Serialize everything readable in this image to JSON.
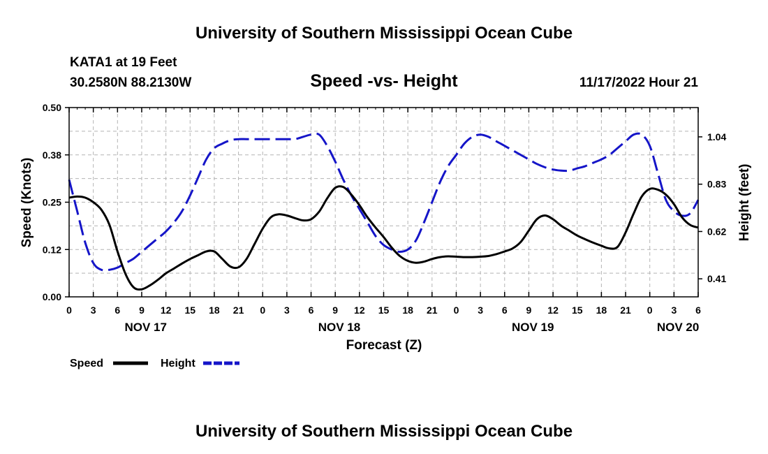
{
  "header": {
    "title": "University of Southern Mississippi Ocean Cube",
    "footer_title": "University of Southern Mississippi Ocean Cube",
    "station": "KATA1 at 19 Feet",
    "coords": "30.2580N  88.2130W",
    "datetime": "11/17/2022 Hour 21"
  },
  "colors": {
    "speed": "#000000",
    "height": "#1515c8",
    "grid": "#b4b4b4"
  },
  "chart_data": {
    "type": "line",
    "title": "Speed -vs- Height",
    "xlabel": "Forecast (Z)",
    "ylabel": "Speed (Knots)",
    "y2label": "Height (feet)",
    "xlim": [
      0,
      78
    ],
    "ylim": [
      0,
      0.5
    ],
    "y2lim": [
      0.33,
      1.17
    ],
    "x_ticks": [
      0,
      3,
      6,
      9,
      12,
      15,
      18,
      21,
      24,
      27,
      30,
      33,
      36,
      39,
      42,
      45,
      48,
      51,
      54,
      57,
      60,
      63,
      66,
      69,
      72,
      75,
      78
    ],
    "x_tick_labels": [
      "0",
      "3",
      "6",
      "9",
      "12",
      "15",
      "18",
      "21",
      "0",
      "3",
      "6",
      "9",
      "12",
      "15",
      "18",
      "21",
      "0",
      "3",
      "6",
      "9",
      "12",
      "15",
      "18",
      "21",
      "0",
      "3",
      "6"
    ],
    "day_labels": [
      {
        "x": 9.5,
        "label": "NOV 17"
      },
      {
        "x": 33.5,
        "label": "NOV 18"
      },
      {
        "x": 57.5,
        "label": "NOV 19"
      },
      {
        "x": 75.5,
        "label": "NOV 20"
      }
    ],
    "y_ticks": [
      0,
      0.125,
      0.25,
      0.375,
      0.5
    ],
    "y_tick_labels": [
      "0.00",
      "0.12",
      "0.25",
      "0.38",
      "0.50"
    ],
    "y2_ticks": [
      0.41,
      0.62,
      0.83,
      1.04
    ],
    "y2_tick_labels": [
      "0.41",
      "0.62",
      "0.83",
      "1.04"
    ],
    "grid": true,
    "legend": "bottom-left",
    "series": [
      {
        "name": "Speed",
        "axis": "left",
        "style": "solid",
        "x": [
          0,
          1,
          2,
          3,
          4,
          5,
          6,
          7,
          8,
          9,
          10,
          11,
          12,
          13,
          14,
          15,
          16,
          17,
          18,
          19,
          20,
          21,
          22,
          23,
          24,
          25,
          26,
          27,
          28,
          29,
          30,
          31,
          32,
          33,
          34,
          35,
          36,
          37,
          38,
          39,
          40,
          41,
          42,
          43,
          44,
          45,
          46,
          47,
          48,
          49,
          50,
          51,
          52,
          53,
          54,
          55,
          56,
          57,
          58,
          59,
          60,
          61,
          62,
          63,
          64,
          65,
          66,
          67,
          68,
          69,
          70,
          71,
          72,
          73,
          74,
          75,
          76,
          77,
          78
        ],
        "values": [
          0.262,
          0.265,
          0.262,
          0.25,
          0.23,
          0.19,
          0.12,
          0.06,
          0.025,
          0.02,
          0.03,
          0.045,
          0.062,
          0.075,
          0.088,
          0.1,
          0.11,
          0.12,
          0.12,
          0.1,
          0.08,
          0.078,
          0.1,
          0.14,
          0.18,
          0.21,
          0.218,
          0.215,
          0.208,
          0.202,
          0.205,
          0.225,
          0.26,
          0.288,
          0.29,
          0.27,
          0.242,
          0.21,
          0.183,
          0.158,
          0.13,
          0.108,
          0.095,
          0.09,
          0.093,
          0.1,
          0.105,
          0.107,
          0.106,
          0.105,
          0.105,
          0.106,
          0.108,
          0.113,
          0.12,
          0.128,
          0.145,
          0.175,
          0.205,
          0.215,
          0.205,
          0.188,
          0.175,
          0.162,
          0.152,
          0.143,
          0.135,
          0.128,
          0.132,
          0.17,
          0.22,
          0.265,
          0.285,
          0.283,
          0.27,
          0.245,
          0.21,
          0.19,
          0.183
        ]
      },
      {
        "name": "Height",
        "axis": "right",
        "style": "dashed",
        "x": [
          0,
          1,
          2,
          3,
          4,
          5,
          6,
          7,
          8,
          9,
          10,
          11,
          12,
          13,
          14,
          15,
          16,
          17,
          18,
          19,
          20,
          21,
          22,
          23,
          24,
          25,
          26,
          27,
          28,
          29,
          30,
          31,
          32,
          33,
          34,
          35,
          36,
          37,
          38,
          39,
          40,
          41,
          42,
          43,
          44,
          45,
          46,
          47,
          48,
          49,
          50,
          51,
          52,
          53,
          54,
          55,
          56,
          57,
          58,
          59,
          60,
          61,
          62,
          63,
          64,
          65,
          66,
          67,
          68,
          69,
          70,
          71,
          72,
          73,
          74,
          75,
          76,
          77,
          78
        ],
        "values": [
          0.85,
          0.71,
          0.57,
          0.48,
          0.45,
          0.45,
          0.46,
          0.48,
          0.5,
          0.53,
          0.56,
          0.59,
          0.62,
          0.66,
          0.71,
          0.78,
          0.86,
          0.94,
          0.99,
          1.01,
          1.025,
          1.03,
          1.03,
          1.03,
          1.03,
          1.03,
          1.03,
          1.03,
          1.03,
          1.04,
          1.05,
          1.05,
          1.0,
          0.93,
          0.85,
          0.78,
          0.72,
          0.66,
          0.6,
          0.56,
          0.54,
          0.53,
          0.54,
          0.58,
          0.66,
          0.75,
          0.84,
          0.91,
          0.96,
          1.01,
          1.04,
          1.05,
          1.04,
          1.02,
          1.0,
          0.98,
          0.96,
          0.94,
          0.92,
          0.905,
          0.895,
          0.89,
          0.89,
          0.9,
          0.91,
          0.925,
          0.94,
          0.96,
          0.99,
          1.02,
          1.05,
          1.05,
          1.0,
          0.88,
          0.76,
          0.71,
          0.69,
          0.7,
          0.76
        ]
      }
    ]
  }
}
